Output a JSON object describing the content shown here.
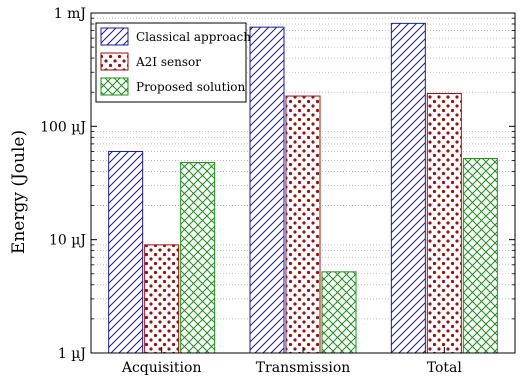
{
  "chart_data": {
    "type": "bar",
    "ylabel": "Energy (Joule)",
    "yscale": "log",
    "ylim": [
      1e-06,
      0.001
    ],
    "yticks": [
      {
        "value": 1e-06,
        "label": "1 µJ"
      },
      {
        "value": 1e-05,
        "label": "10 µJ"
      },
      {
        "value": 0.0001,
        "label": "100 µJ"
      },
      {
        "value": 0.001,
        "label": "1 mJ"
      }
    ],
    "grid": "horizontal-minor-dotted",
    "legend_position": "top-left",
    "categories": [
      "Acquisition",
      "Transmission",
      "Total"
    ],
    "series": [
      {
        "name": "Classical approach",
        "color": "#1a1aa6",
        "pattern": "diagonal-hatch",
        "values": [
          6e-05,
          0.00075,
          0.00081
        ]
      },
      {
        "name": "A2I sensor",
        "color": "#9b0f0f",
        "pattern": "dots",
        "values": [
          9e-06,
          0.000185,
          0.000195
        ]
      },
      {
        "name": "Proposed solution",
        "color": "#1a8f1a",
        "pattern": "crosshatch",
        "values": [
          4.8e-05,
          5.2e-06,
          5.2e-05
        ]
      }
    ]
  }
}
